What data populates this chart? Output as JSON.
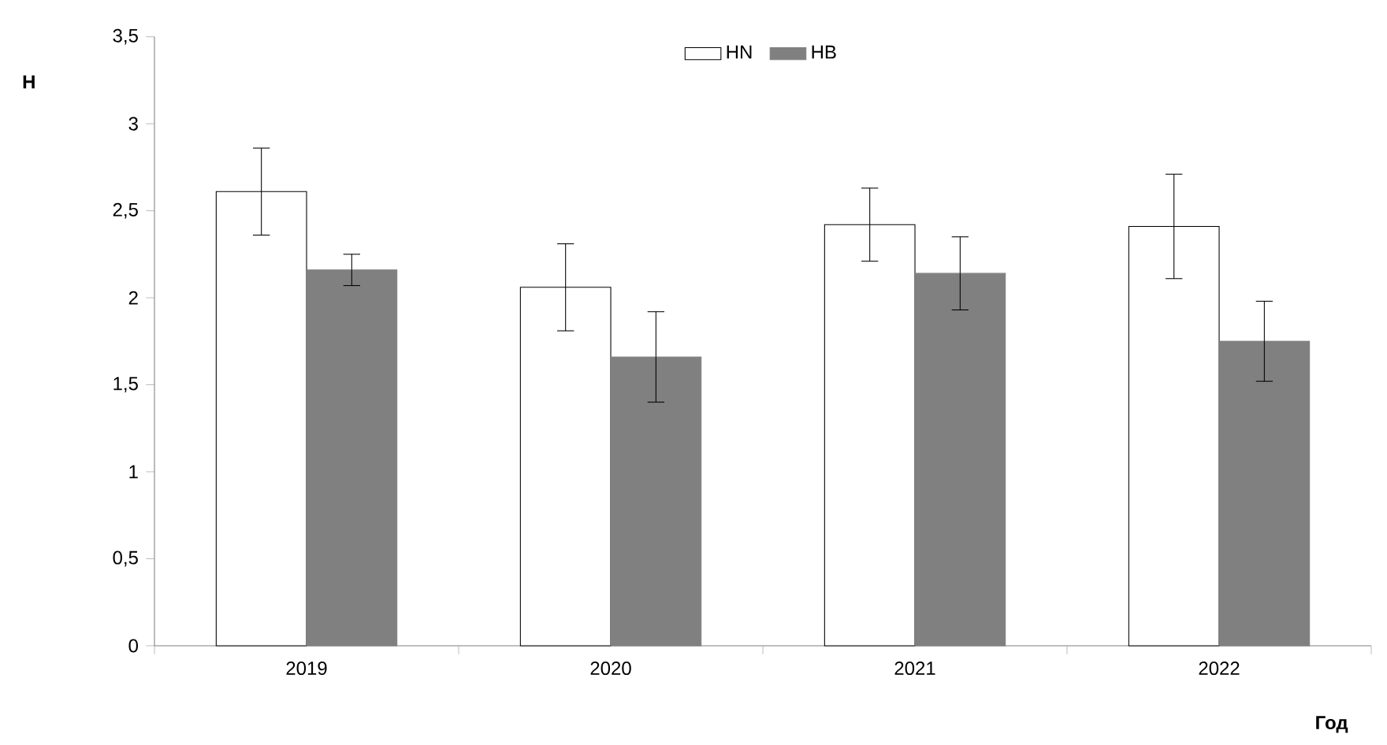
{
  "chart_data": {
    "type": "bar",
    "xlabel": "Год",
    "ylabel": "Н",
    "categories": [
      "2019",
      "2020",
      "2021",
      "2022"
    ],
    "series": [
      {
        "name": "HN",
        "color": "#ffffff",
        "values": [
          2.61,
          2.06,
          2.42,
          2.41
        ],
        "errors": [
          0.25,
          0.25,
          0.21,
          0.3
        ]
      },
      {
        "name": "HB",
        "color": "#808080",
        "values": [
          2.16,
          1.66,
          2.14,
          1.75
        ],
        "errors": [
          0.09,
          0.26,
          0.21,
          0.23
        ]
      }
    ],
    "ylim": [
      0,
      3.5
    ],
    "yticks": [
      0,
      {
        "value": 0.5,
        "label": "0,5"
      },
      1,
      {
        "value": 1.5,
        "label": "1,5"
      },
      2,
      {
        "value": 2.5,
        "label": "2,5"
      },
      3,
      {
        "value": 3.5,
        "label": "3,5"
      }
    ],
    "grid": false,
    "legend": "top"
  }
}
